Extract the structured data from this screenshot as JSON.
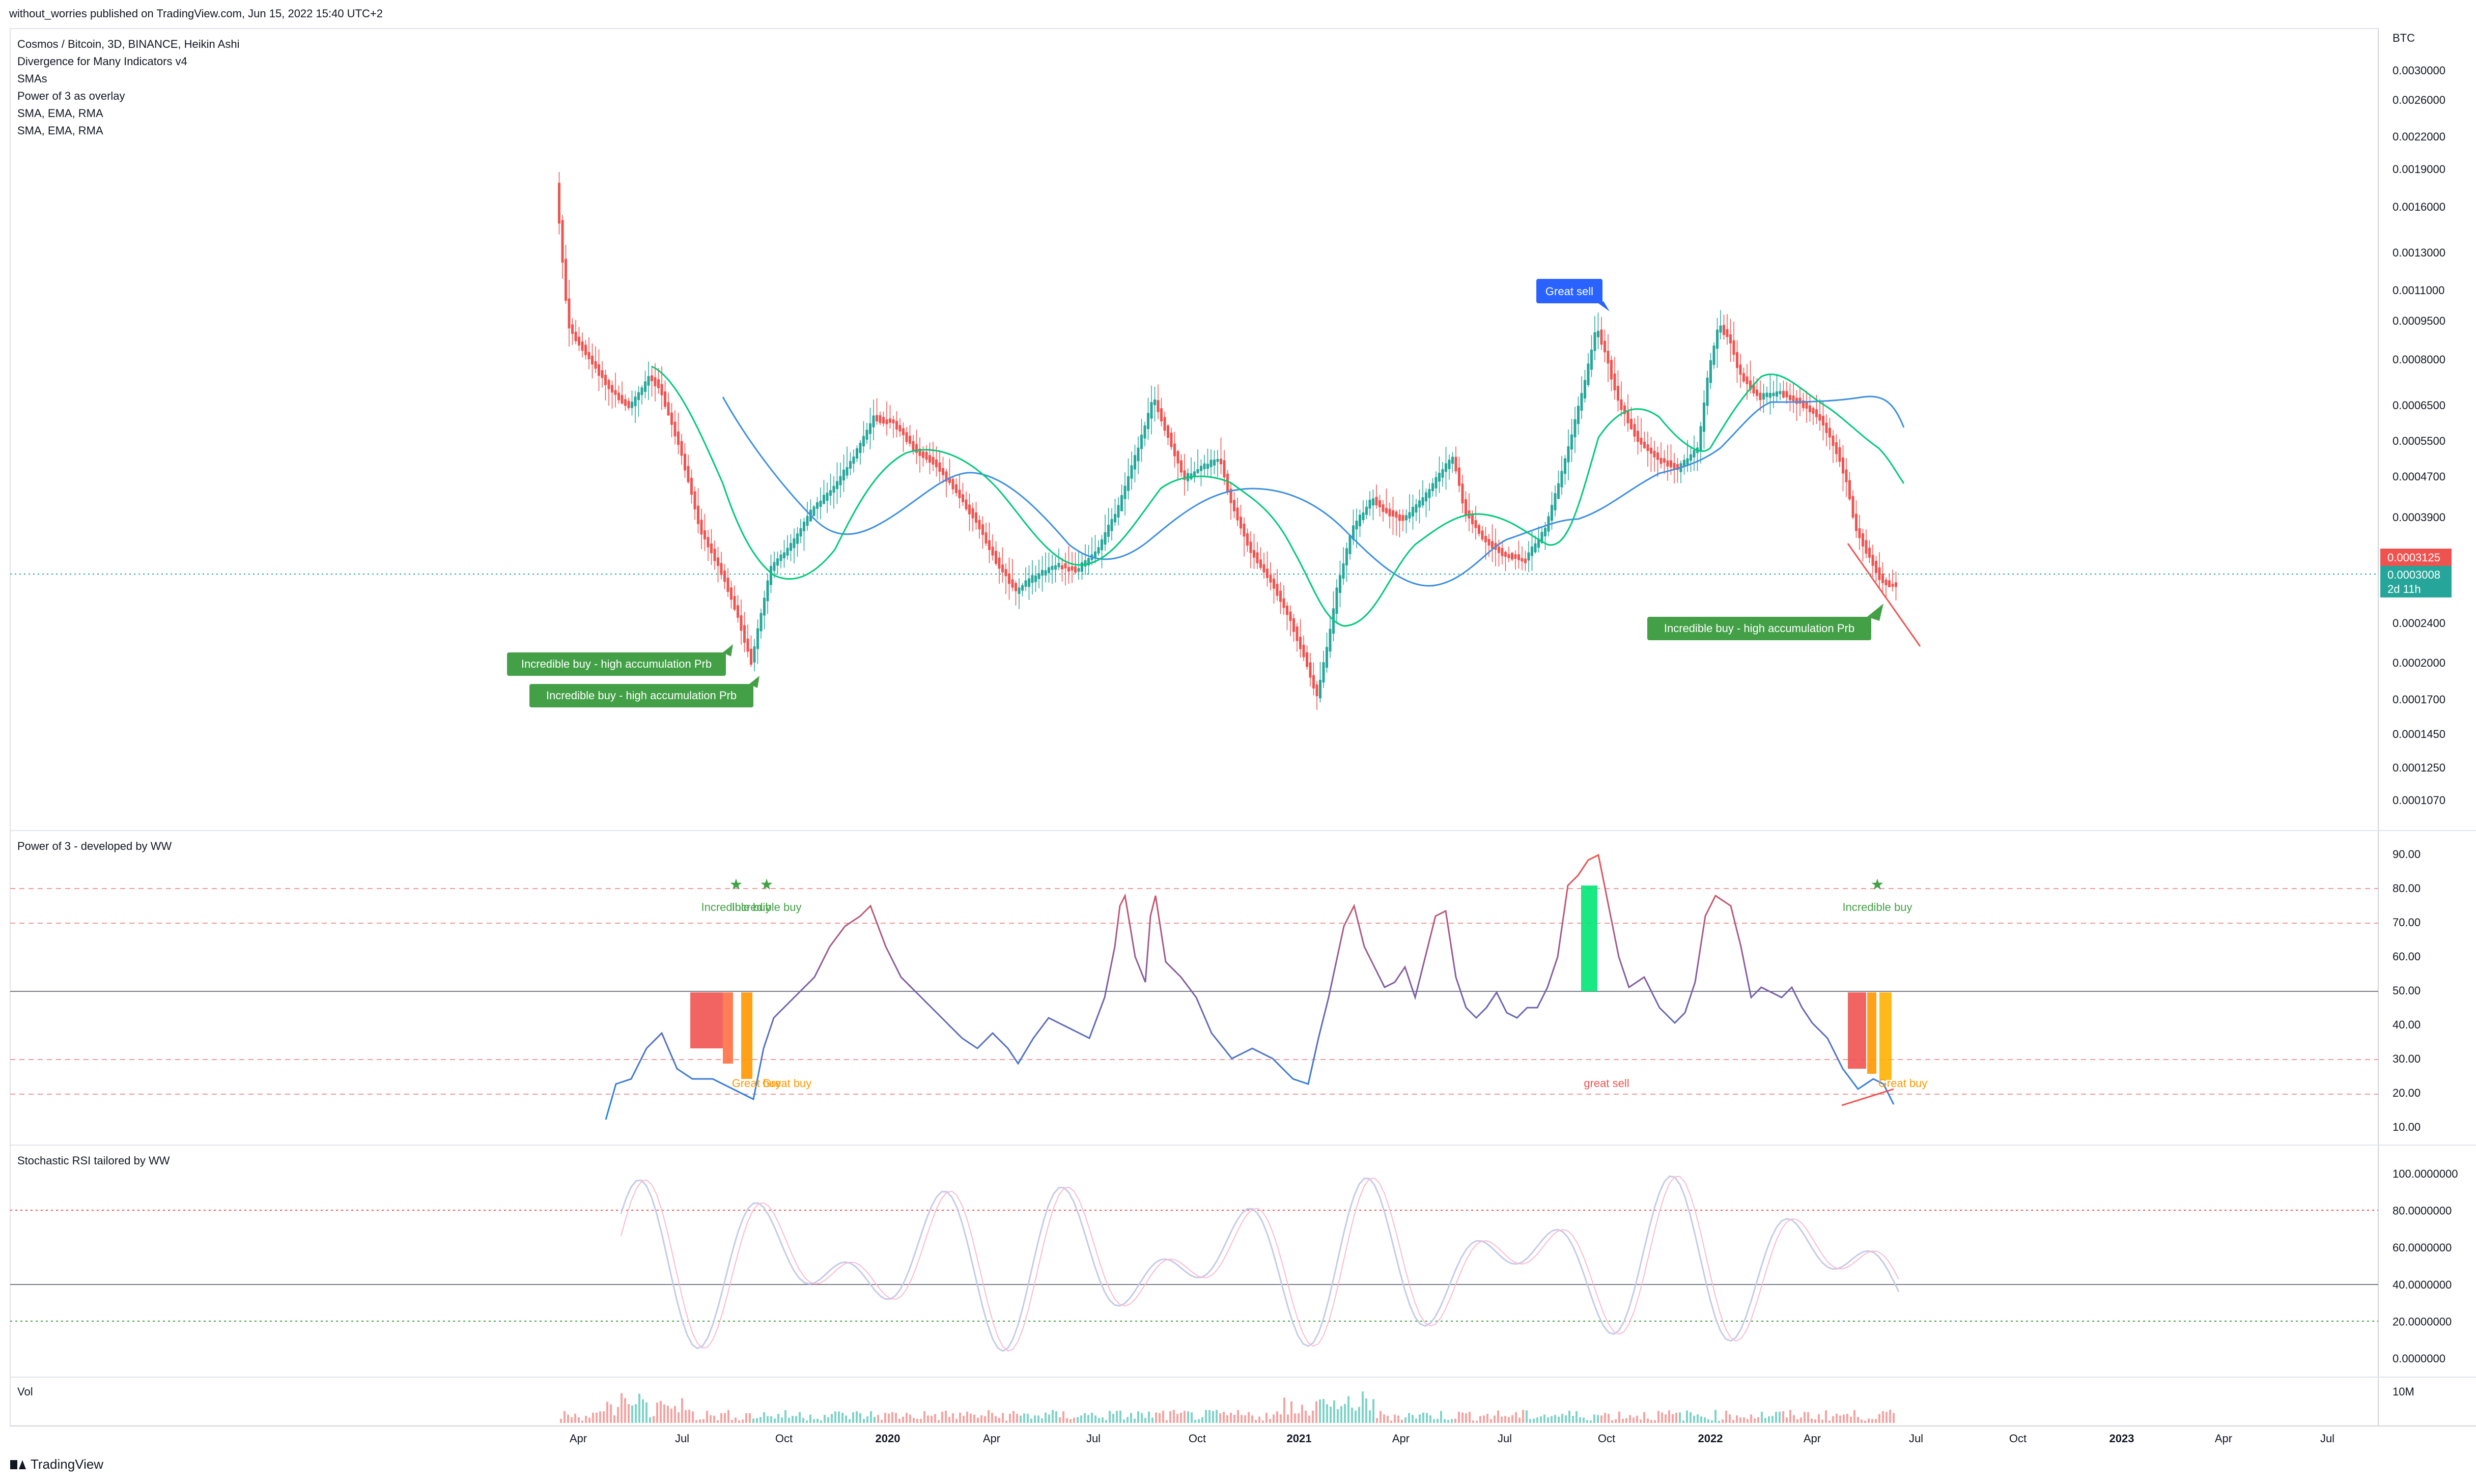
{
  "header": {
    "published_text": "without_worries published on TradingView.com, Jun 15, 2022 15:40 UTC+2"
  },
  "legend": [
    "Cosmos / Bitcoin, 3D, BINANCE, Heikin Ashi",
    "Divergence for Many Indicators v4",
    "SMAs",
    "Power of 3 as overlay",
    "SMA, EMA, RMA",
    "SMA, EMA, RMA"
  ],
  "price_axis": {
    "currency": "BTC",
    "ticks": [
      "0.0030000",
      "0.0026000",
      "0.0022000",
      "0.0019000",
      "0.0016000",
      "0.0013000",
      "0.0011000",
      "0.0009500",
      "0.0008000",
      "0.0006500",
      "0.0005500",
      "0.0004700",
      "0.0003900",
      "0.0002400",
      "0.0002000",
      "0.0001700",
      "0.0001450",
      "0.0001250",
      "0.0001070"
    ],
    "last_price_red": "0.0003125",
    "last_price_green": "0.0003008",
    "countdown": "2d 11h"
  },
  "annotations": {
    "great_sell": "Great sell",
    "incredible_buy_1": "Incredible buy - high accumulation Prb",
    "incredible_buy_2": "Incredible buy - high accumulation Prb",
    "incredible_buy_3": "Incredible buy - high accumulation Prb"
  },
  "power3": {
    "title": "Power of 3 - developed by WW",
    "ticks": [
      "90.00",
      "80.00",
      "70.00",
      "60.00",
      "50.00",
      "40.00",
      "30.00",
      "20.00",
      "10.00"
    ],
    "labels": {
      "incredible_buy_a": "Incredible buy",
      "incredible_buy_b": "Incredible buy",
      "incredible_buy_c": "Incredible buy",
      "great_buy_a": "Great buy",
      "great_buy_b": "Great buy",
      "great_buy_c": "Great buy",
      "great_sell": "great sell"
    }
  },
  "stoch": {
    "title": "Stochastic RSI tailored by WW",
    "ticks": [
      "100.0000000",
      "80.0000000",
      "60.0000000",
      "40.0000000",
      "20.0000000",
      "0.0000000"
    ]
  },
  "volume": {
    "title": "Vol",
    "tick": "10M"
  },
  "time_axis": [
    "Apr",
    "Jul",
    "Oct",
    "2020",
    "Apr",
    "Jul",
    "Oct",
    "2021",
    "Apr",
    "Jul",
    "Oct",
    "2022",
    "Apr",
    "Jul",
    "Oct",
    "2023",
    "Apr",
    "Jul"
  ],
  "brand": "TradingView",
  "colors": {
    "up": "#26a69a",
    "down": "#ef5350",
    "sma_green": "#00c97a",
    "sma_blue": "#3c8fe0",
    "label_green": "#43a047",
    "label_blue": "#2962ff",
    "orange": "#ff9800",
    "purple": "#7b5ea7"
  }
}
